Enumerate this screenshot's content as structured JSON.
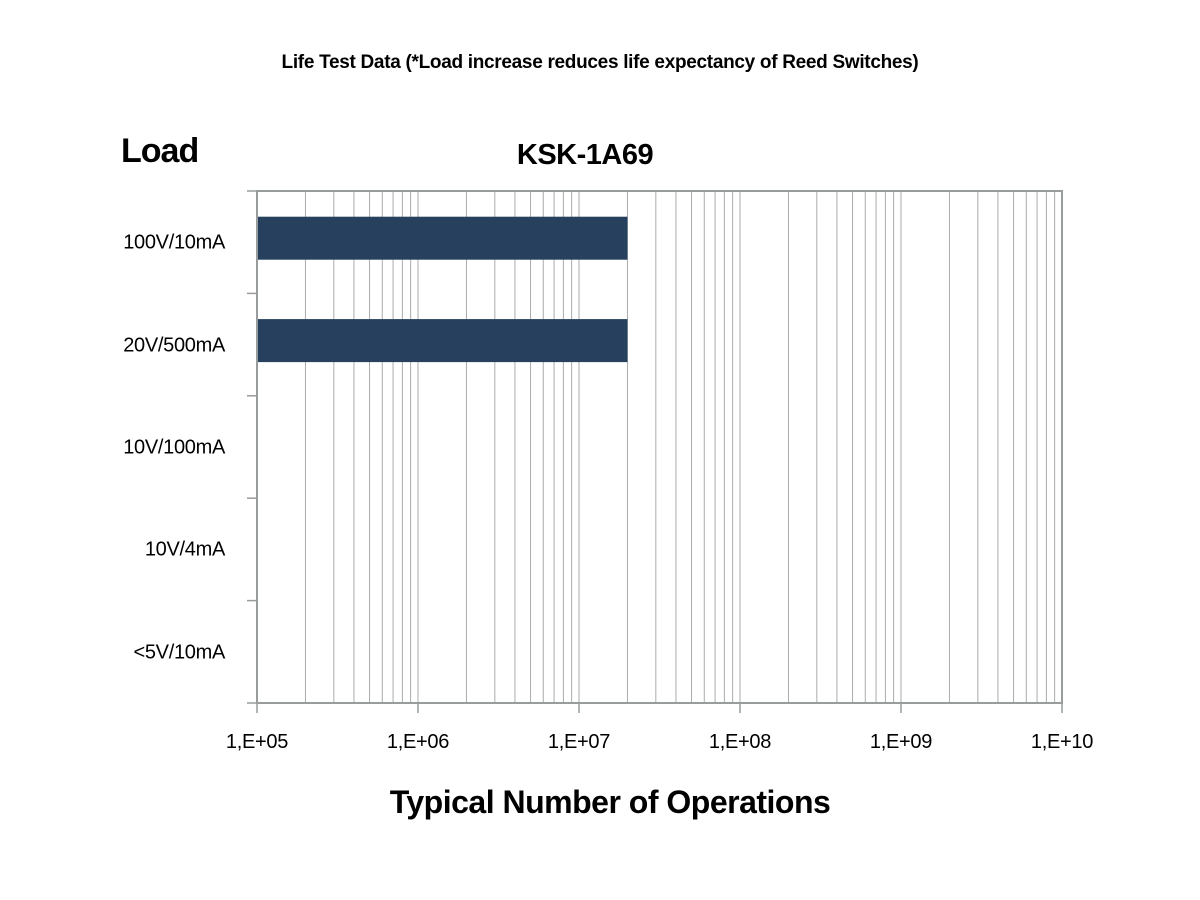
{
  "header": {
    "title": "Life Test Data (*Load increase reduces life expectancy of Reed Switches)"
  },
  "chart_data": {
    "type": "bar",
    "orientation": "horizontal",
    "title": "KSK-1A69",
    "xlabel": "Typical Number of Operations",
    "ylabel": "Load",
    "categories": [
      "100V/10mA",
      "20V/500mA",
      "10V/100mA",
      "10V/4mA",
      "<5V/10mA"
    ],
    "values": [
      20000000,
      20000000,
      null,
      null,
      null
    ],
    "x_scale": "log",
    "xlim": [
      100000,
      10000000000
    ],
    "x_ticks": [
      100000,
      1000000,
      10000000,
      100000000,
      1000000000,
      10000000000
    ],
    "x_tick_labels": [
      "1,E+05",
      "1,E+06",
      "1,E+07",
      "1,E+08",
      "1,E+09",
      "1,E+10"
    ],
    "grid": "log-minor-vertical",
    "legend": "none"
  },
  "style": {
    "bar_color": "#26405e",
    "grid_color": "#ababab",
    "axis_color": "#989c9c",
    "text_color": "#000000",
    "background": "#ffffff"
  }
}
